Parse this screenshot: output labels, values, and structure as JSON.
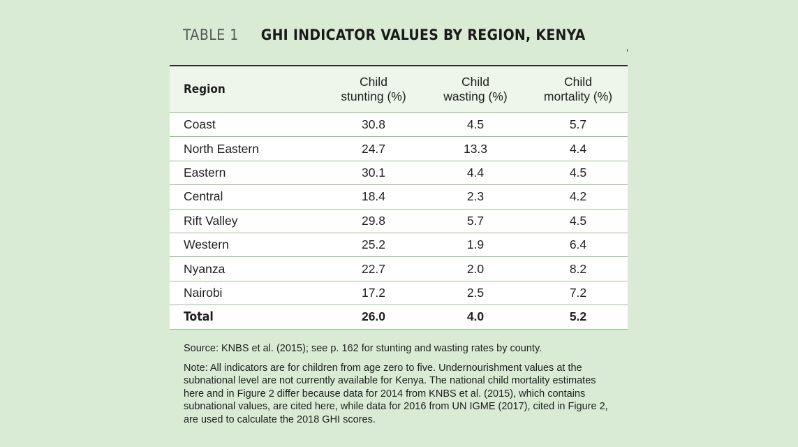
{
  "heading": {
    "table_number": "TABLE 1",
    "title": "GHI INDICATOR VALUES BY REGION, KENYA"
  },
  "table": {
    "headers": [
      {
        "line1": "Region",
        "line2": ""
      },
      {
        "line1": "Child",
        "line2": "stunting (%)"
      },
      {
        "line1": "Child",
        "line2": "wasting (%)"
      },
      {
        "line1": "Child",
        "line2": "mortality (%)"
      }
    ],
    "rows": [
      [
        "Coast",
        "30.8",
        "4.5",
        "5.7"
      ],
      [
        "North Eastern",
        "24.7",
        "13.3",
        "4.4"
      ],
      [
        "Eastern",
        "30.1",
        "4.4",
        "4.5"
      ],
      [
        "Central",
        "18.4",
        "2.3",
        "4.2"
      ],
      [
        "Rift Valley",
        "29.8",
        "5.7",
        "4.5"
      ],
      [
        "Western",
        "25.2",
        "1.9",
        "6.4"
      ],
      [
        "Nyanza",
        "22.7",
        "2.0",
        "8.2"
      ],
      [
        "Nairobi",
        "17.2",
        "2.5",
        "7.2"
      ]
    ],
    "total": [
      "Total",
      "26.0",
      "4.0",
      "5.2"
    ]
  },
  "notes": {
    "source": "Source: KNBS et al. (2015); see p. 162 for stunting and wasting rates by county.",
    "note": "Note: All indicators are for children from age zero to five. Undernourishment values at the subnational level are not currently available for Kenya. The national child mortality estimates here and in Figure 2 differ because data for 2014 from KNBS et al. (2015), which contains subnational values, are cited here, while data for 2016 from UN IGME (2017), cited in Figure 2, are used to calculate the 2018 GHI scores."
  },
  "colors": {
    "page_background": "#d9ebd5",
    "header_background": "#eef6eb",
    "row_background": "#ffffff",
    "row_divider": "#8cc48a"
  }
}
